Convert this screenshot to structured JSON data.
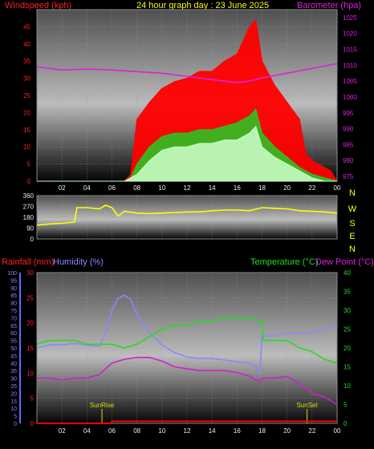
{
  "header": {
    "wind_label": "Windspeed (kph)",
    "title": "24 hour graph day : 23 June 2025",
    "baro_label": "Barometer (hpa)"
  },
  "lower_header": {
    "rain_label": "Rainfall (mm)",
    "humidity_label": "Humidity (%)",
    "temp_label": "Temperature (°C)",
    "dew_label": "Dew Point (°C)"
  },
  "colors": {
    "wind_gust": "#ff0000",
    "wind_avg": "#22cc22",
    "wind_speed": "#ccffcc",
    "barometer": "#dd22dd",
    "direction": "#ffff00",
    "rainfall": "#ff0000",
    "humidity": "#8888ff",
    "temperature": "#22dd22",
    "dewpoint": "#cc22cc",
    "sun_label": "#dddd00"
  },
  "chart_data": [
    {
      "type": "line",
      "name": "wind-barometer",
      "x_ticks": [
        "02",
        "04",
        "06",
        "08",
        "10",
        "12",
        "14",
        "16",
        "18",
        "20",
        "22",
        "00"
      ],
      "y_left_ticks": [
        0,
        5,
        10,
        15,
        20,
        25,
        30,
        35,
        40,
        45
      ],
      "y_left_range": [
        0,
        50
      ],
      "y_right_ticks": [
        975,
        980,
        985,
        990,
        995,
        1000,
        1005,
        1010,
        1015,
        1020,
        1025
      ],
      "y_right_range": [
        973.5,
        1027.5
      ],
      "series": [
        {
          "key": "wind_gust",
          "x": [
            0,
            1,
            2,
            3,
            4,
            5,
            6,
            6.5,
            7,
            7.5,
            8,
            9,
            10,
            11,
            12,
            13,
            14,
            15,
            16,
            17,
            17.5,
            18,
            19,
            20,
            21,
            21.5,
            22,
            23,
            23.5,
            24
          ],
          "y": [
            0,
            0,
            0,
            0,
            0,
            0,
            0,
            0,
            0,
            2,
            18,
            23,
            27,
            29,
            30,
            32,
            32,
            35,
            37,
            45,
            47,
            35,
            28,
            23,
            18,
            8,
            6,
            4,
            3,
            0
          ]
        },
        {
          "key": "wind_avg",
          "x": [
            0,
            6,
            7,
            7.5,
            8,
            9,
            10,
            11,
            12,
            13,
            14,
            15,
            16,
            17,
            17.5,
            18,
            19,
            20,
            21,
            22,
            23,
            24
          ],
          "y": [
            0,
            0,
            0,
            1,
            5,
            10,
            13,
            14,
            14,
            15,
            15,
            16,
            17,
            19,
            21,
            14,
            10,
            7,
            4,
            2,
            1,
            0
          ]
        },
        {
          "key": "wind_speed",
          "x": [
            0,
            6,
            7,
            8,
            9,
            10,
            11,
            12,
            13,
            14,
            15,
            16,
            17,
            17.5,
            18,
            19,
            20,
            21,
            22,
            23,
            24
          ],
          "y": [
            0,
            0,
            0,
            2,
            6,
            9,
            10,
            10,
            11,
            11,
            12,
            12,
            14,
            16,
            10,
            7,
            5,
            3,
            1,
            0,
            0
          ]
        },
        {
          "key": "barometer",
          "x": [
            0,
            2,
            4,
            6,
            8,
            10,
            12,
            14,
            16,
            17,
            18,
            20,
            22,
            24
          ],
          "y": [
            1009.5,
            1008.5,
            1008.8,
            1008.5,
            1008.0,
            1007.5,
            1006.5,
            1005.5,
            1004.5,
            1005.0,
            1006.0,
            1007.5,
            1009.0,
            1010.5
          ]
        }
      ]
    },
    {
      "type": "scatter",
      "name": "wind-direction",
      "y_ticks": [
        360,
        270,
        180,
        90,
        0
      ],
      "y_range": [
        0,
        360
      ],
      "compass": [
        "N",
        "W",
        "S",
        "E",
        "N"
      ],
      "series": [
        {
          "key": "direction",
          "x": [
            0,
            1,
            2,
            3,
            3.2,
            4,
            5,
            5.5,
            6,
            6.5,
            7,
            8,
            9,
            10,
            11,
            12,
            13,
            14,
            15,
            16,
            17,
            18,
            19,
            20,
            21,
            22,
            23,
            24
          ],
          "y": [
            115,
            125,
            130,
            140,
            260,
            260,
            250,
            280,
            260,
            190,
            230,
            215,
            210,
            215,
            220,
            225,
            225,
            235,
            240,
            240,
            235,
            260,
            255,
            250,
            235,
            230,
            225,
            215
          ]
        }
      ]
    },
    {
      "type": "line",
      "name": "temp-humidity-rain",
      "sun_labels": {
        "sunrise": "SunRise",
        "sunset": "SunSet"
      },
      "sun_times": {
        "sunrise": 5.2,
        "sunset": 21.6
      },
      "humidity_ticks": [
        0,
        5,
        10,
        15,
        20,
        25,
        30,
        35,
        40,
        45,
        50,
        55,
        60,
        65,
        70,
        75,
        80,
        85,
        90,
        95,
        100
      ],
      "humidity_range": [
        0,
        100
      ],
      "rain_ticks": [
        0,
        5,
        10,
        15,
        20,
        25,
        30
      ],
      "rain_range": [
        0,
        30
      ],
      "temp_ticks": [
        0,
        5,
        10,
        15,
        20,
        25,
        30,
        35,
        40
      ],
      "temp_range": [
        0,
        40
      ],
      "series": [
        {
          "key": "humidity",
          "x": [
            0,
            1,
            2,
            3,
            4,
            5,
            5.5,
            6,
            6.5,
            7,
            7.5,
            8,
            9,
            10,
            11,
            12,
            13,
            14,
            15,
            16,
            17,
            17.5,
            17.8,
            18,
            19,
            20,
            21,
            22,
            23,
            24
          ],
          "y": [
            50,
            52,
            52,
            53,
            52,
            51,
            60,
            75,
            83,
            85,
            82,
            72,
            60,
            52,
            47,
            44,
            43,
            43,
            42,
            41,
            40,
            38,
            32,
            58,
            58,
            60,
            60,
            60,
            63,
            65
          ]
        },
        {
          "key": "temperature",
          "x": [
            0,
            1,
            2,
            3,
            4,
            5,
            6,
            7,
            8,
            9,
            10,
            11,
            12,
            13,
            14,
            15,
            16,
            17,
            18,
            18.1,
            19,
            20,
            21,
            22,
            23,
            24
          ],
          "y": [
            21,
            22,
            22,
            22,
            21,
            21,
            21,
            20,
            21,
            23,
            25,
            26,
            26,
            27,
            27,
            28,
            28,
            28,
            27,
            22,
            22,
            22,
            20,
            19,
            17,
            16
          ]
        },
        {
          "key": "dewpoint",
          "x": [
            0,
            1,
            2,
            3,
            4,
            5,
            6,
            7,
            8,
            9,
            10,
            11,
            12,
            13,
            14,
            15,
            16,
            17,
            17.8,
            18,
            19,
            20,
            21,
            22,
            23,
            24
          ],
          "y": [
            12,
            12,
            11.5,
            12,
            12,
            13,
            16,
            17,
            17.5,
            17.5,
            16.5,
            15,
            14.5,
            14,
            14,
            14,
            13.5,
            12.5,
            11,
            12,
            12,
            12.5,
            10.5,
            8,
            7,
            5
          ]
        },
        {
          "key": "rainfall",
          "x": [
            0,
            5.9,
            6,
            24
          ],
          "y": [
            0,
            0,
            0.4,
            0.4
          ]
        }
      ]
    }
  ]
}
